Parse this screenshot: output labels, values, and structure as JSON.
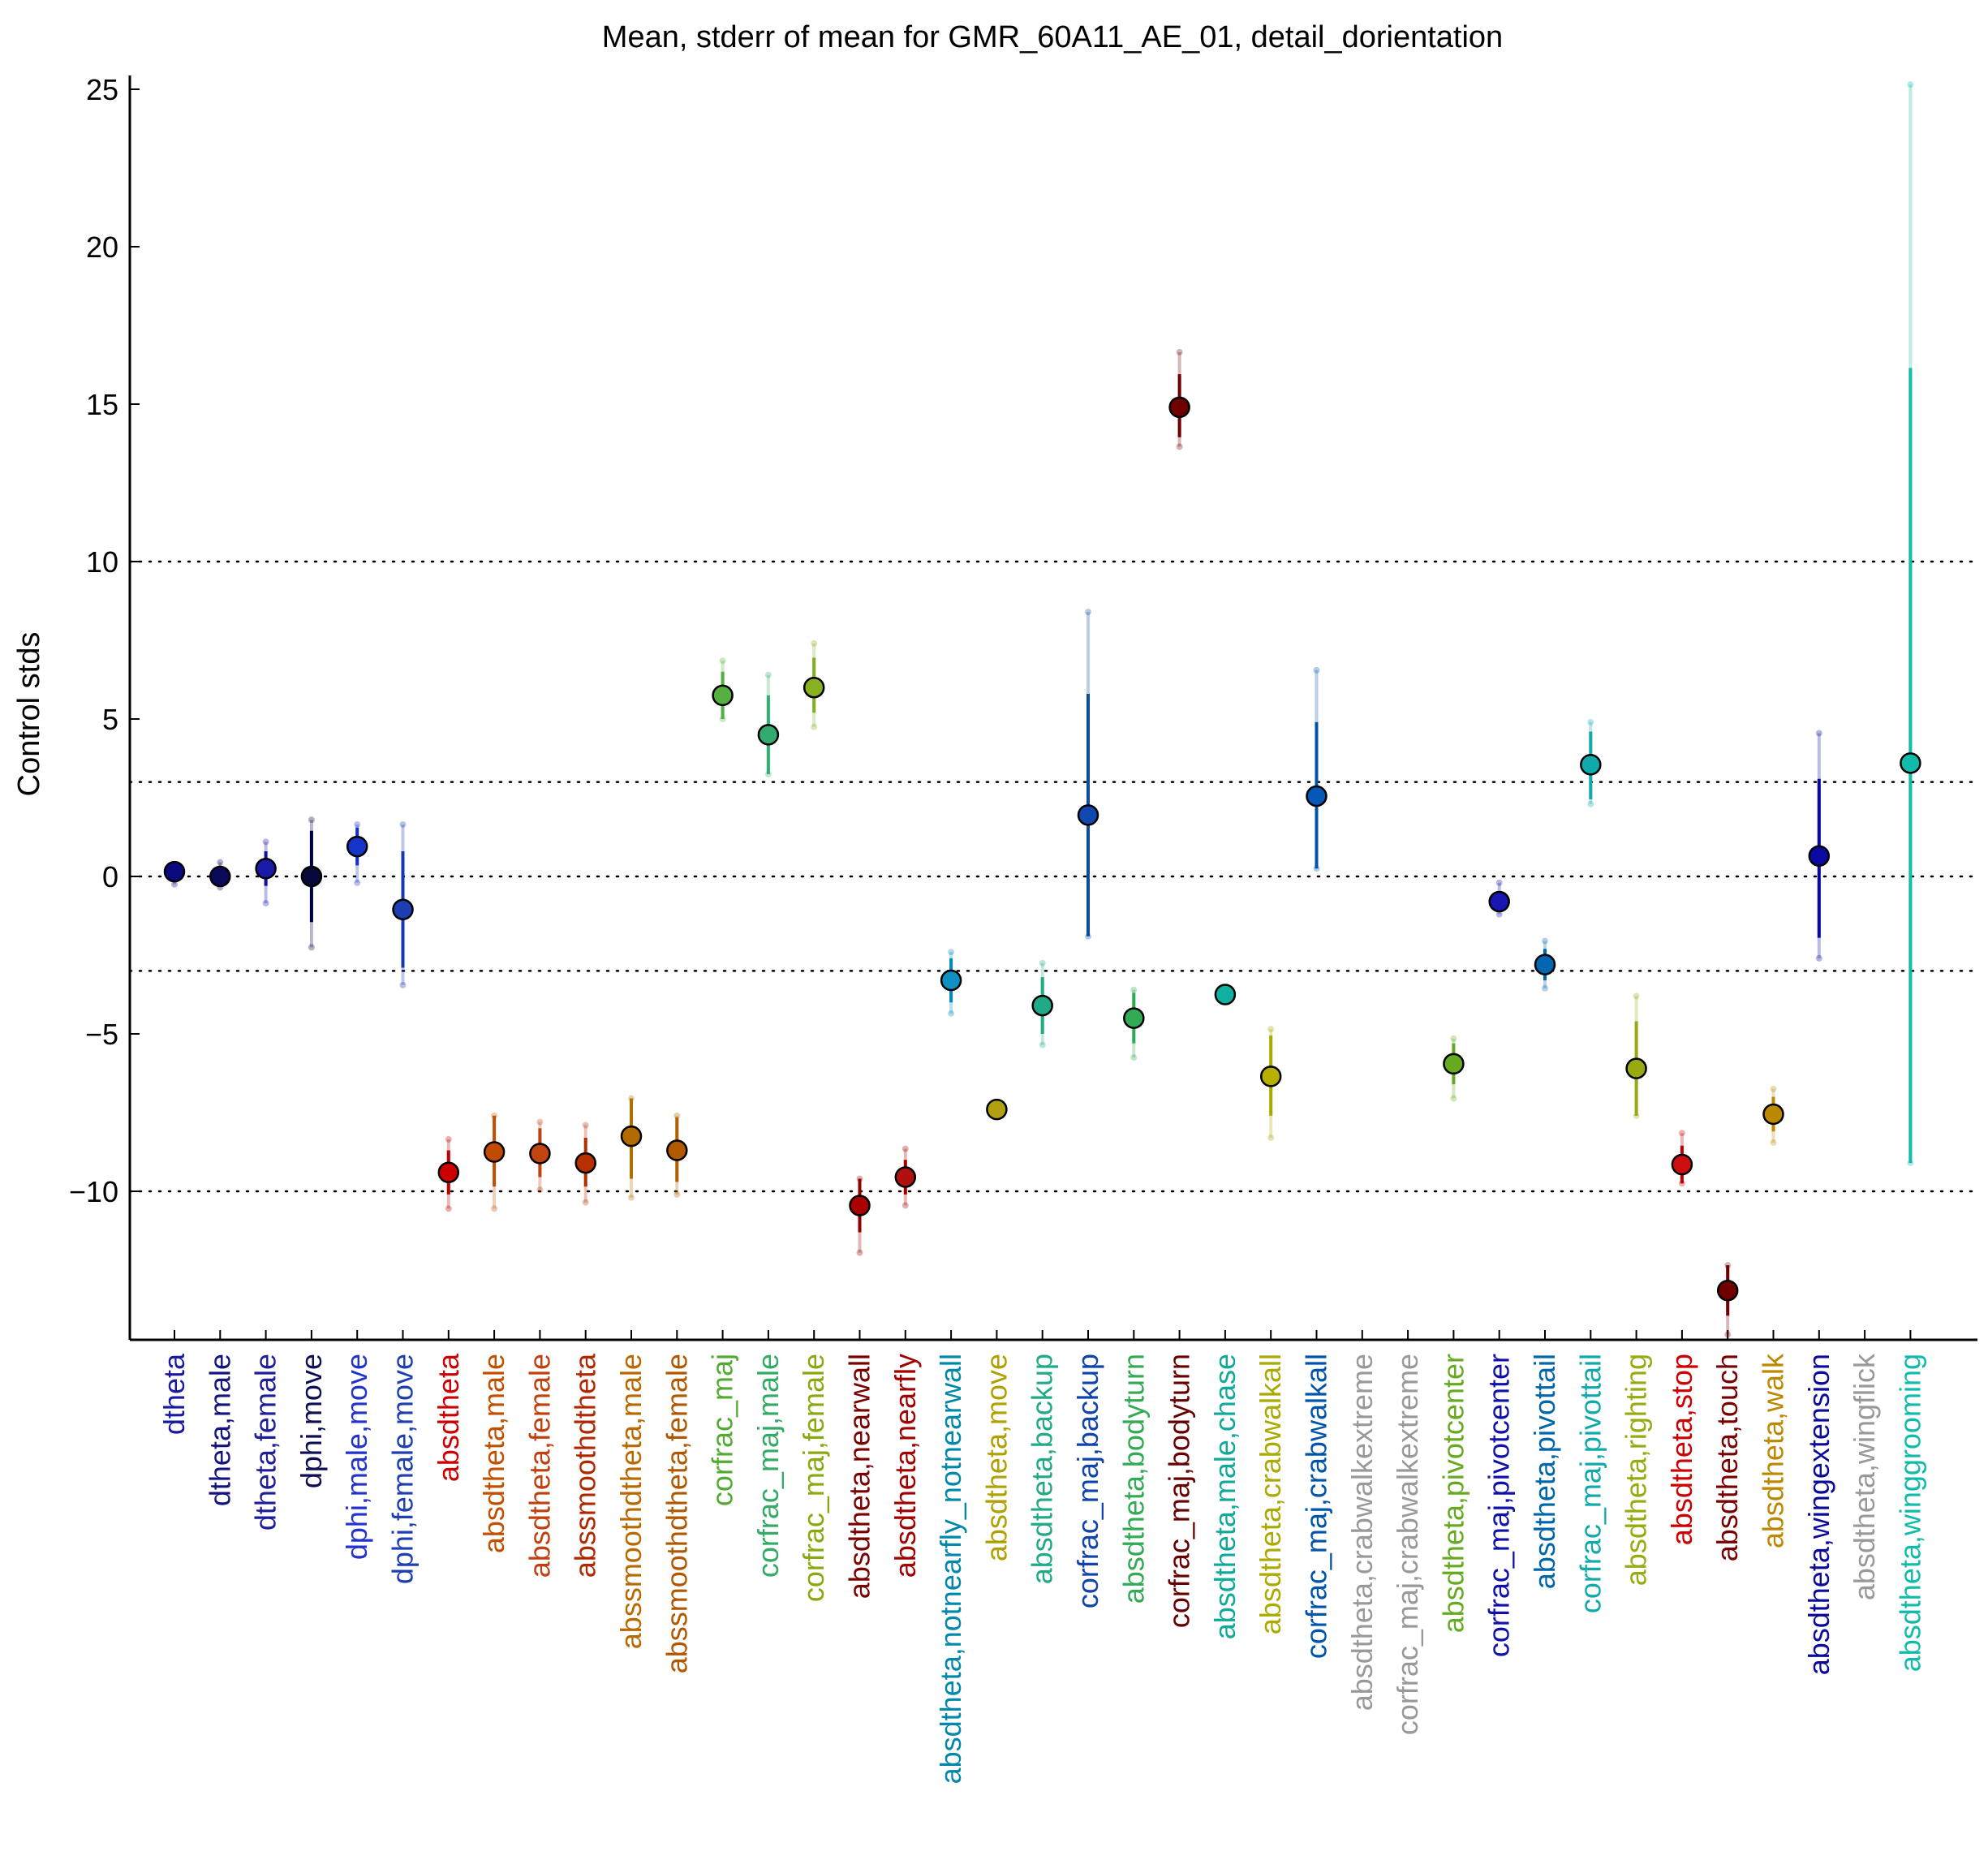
{
  "chart_data": {
    "type": "scatter",
    "title": "Mean, stderr of mean for GMR_60A11_AE_01, detail_dorientation",
    "xlabel": "",
    "ylabel": "Control stds",
    "ylim": [
      -14.8,
      25.6
    ],
    "yticks": [
      25,
      20,
      15,
      10,
      5,
      0,
      -5,
      -10
    ],
    "reference_lines": [
      10,
      3,
      0,
      -3,
      -10
    ],
    "grid": false,
    "legend": "none",
    "categories": [
      "dtheta",
      "dtheta,male",
      "dtheta,female",
      "dphi,move",
      "dphi,male,move",
      "dphi,female,move",
      "absdtheta",
      "absdtheta,male",
      "absdtheta,female",
      "abssmoothdtheta",
      "abssmoothdtheta,male",
      "abssmoothdtheta,female",
      "corfrac_maj",
      "corfrac_maj,male",
      "corfrac_maj,female",
      "absdtheta,nearwall",
      "absdtheta,nearfly",
      "absdtheta,notnearfly_notnearwall",
      "absdtheta,move",
      "absdtheta,backup",
      "corfrac_maj,backup",
      "absdtheta,bodyturn",
      "corfrac_maj,bodyturn",
      "absdtheta,male,chase",
      "absdtheta,crabwalkall",
      "corfrac_maj,crabwalkall",
      "absdtheta,crabwalkextreme",
      "corfrac_maj,crabwalkextreme",
      "absdtheta,pivotcenter",
      "corfrac_maj,pivotcenter",
      "absdtheta,pivottail",
      "corfrac_maj,pivottail",
      "absdtheta,righting",
      "absdtheta,stop",
      "absdtheta,touch",
      "absdtheta,walk",
      "absdtheta,wingextension",
      "absdtheta,wingflick",
      "absdtheta,winggrooming"
    ],
    "label_colors": [
      "#1a1aa0",
      "#14147e",
      "#1e1e9a",
      "#0e0e55",
      "#2233cc",
      "#1f3fb0",
      "#cc0000",
      "#c05000",
      "#c04010",
      "#b02800",
      "#b86a00",
      "#b05800",
      "#55aa33",
      "#33aa66",
      "#88aa11",
      "#7a0000",
      "#a00000",
      "#0088aa",
      "#b0a000",
      "#22aa88",
      "#1144aa",
      "#33aa55",
      "#660000",
      "#11aa99",
      "#aaaa00",
      "#0055aa",
      "#999999",
      "#999999",
      "#66aa22",
      "#1111aa",
      "#0066aa",
      "#11aaaa",
      "#99aa11",
      "#cc0000",
      "#770000",
      "#bb8800",
      "#0b0b99",
      "#999999",
      "#11bbaa"
    ],
    "mean": [
      0.15,
      0.0,
      0.25,
      0.0,
      0.95,
      -1.05,
      -9.4,
      -8.75,
      -8.8,
      -9.1,
      -8.25,
      -8.7,
      5.75,
      4.5,
      6.0,
      -10.45,
      -9.55,
      -3.3,
      -7.4,
      -4.1,
      1.95,
      -4.5,
      14.9,
      -3.75,
      -6.35,
      2.55,
      null,
      null,
      -5.95,
      -0.8,
      -2.8,
      3.55,
      -6.1,
      -9.15,
      -13.15,
      -7.55,
      0.65,
      null,
      3.6
    ],
    "sem_low": [
      0.0,
      -0.2,
      -0.3,
      -1.45,
      0.35,
      -2.9,
      -10.1,
      -9.85,
      -9.55,
      -9.85,
      -9.6,
      -9.7,
      5.0,
      3.25,
      5.2,
      -11.3,
      -10.1,
      -4.0,
      -7.4,
      -5.0,
      -1.9,
      -5.3,
      13.95,
      -3.75,
      -7.6,
      0.25,
      null,
      null,
      -6.6,
      -1.1,
      -3.3,
      2.45,
      -7.6,
      -9.75,
      -13.95,
      -8.1,
      -1.95,
      null,
      -9.1
    ],
    "sem_high": [
      0.3,
      0.2,
      0.8,
      1.45,
      1.55,
      0.8,
      -8.7,
      -7.6,
      -8.0,
      -8.3,
      -7.05,
      -7.65,
      6.5,
      5.75,
      6.95,
      -9.6,
      -9.0,
      -2.6,
      -7.4,
      -3.2,
      5.8,
      -3.7,
      15.95,
      -3.75,
      -5.05,
      4.9,
      null,
      null,
      -5.3,
      -0.5,
      -2.3,
      4.6,
      -4.6,
      -8.55,
      -12.35,
      -7.0,
      3.1,
      null,
      16.15
    ],
    "ci_low": [
      -0.25,
      -0.35,
      -0.85,
      -2.25,
      -0.2,
      -3.45,
      -10.55,
      -10.55,
      -9.95,
      -10.35,
      -10.2,
      -10.1,
      5.0,
      3.25,
      4.75,
      -11.95,
      -10.45,
      -4.35,
      -7.4,
      -5.35,
      -1.9,
      -5.75,
      13.65,
      -3.75,
      -8.3,
      0.25,
      null,
      null,
      -7.05,
      -1.2,
      -3.55,
      2.3,
      -7.6,
      -9.75,
      -14.55,
      -8.45,
      -2.6,
      null,
      -9.1
    ],
    "ci_high": [
      0.35,
      0.45,
      1.1,
      1.8,
      1.65,
      1.65,
      -8.35,
      -7.6,
      -7.8,
      -7.9,
      -7.05,
      -7.6,
      6.85,
      6.4,
      7.4,
      -9.6,
      -8.65,
      -2.4,
      -7.4,
      -2.75,
      8.4,
      -3.6,
      16.65,
      -3.75,
      -4.85,
      6.55,
      null,
      null,
      -5.15,
      -0.2,
      -2.05,
      4.9,
      -3.8,
      -8.15,
      -12.35,
      -6.75,
      4.55,
      null,
      25.15
    ],
    "fill_colors": [
      "#0a0a80",
      "#0a0a5a",
      "#1a1aa8",
      "#08083a",
      "#1535c8",
      "#1d3eb0",
      "#cc0000",
      "#c04a00",
      "#c04510",
      "#b83000",
      "#b06a00",
      "#b05a00",
      "#55b040",
      "#33aa70",
      "#88b020",
      "#aa0000",
      "#b01010",
      "#1090c0",
      "#b0a010",
      "#20aa88",
      "#1048b0",
      "#33aa55",
      "#700000",
      "#10b0a0",
      "#b8b000",
      "#0558b8",
      "#999999",
      "#999999",
      "#66aa22",
      "#1818b0",
      "#0066b0",
      "#11aaaa",
      "#99aa11",
      "#cc1010",
      "#700000",
      "#bb8800",
      "#0a0aa0",
      "#999999",
      "#11bbaa"
    ],
    "line_colors": [
      "#000080",
      "#000060",
      "#1010a0",
      "#000040",
      "#1530c0",
      "#1838b0",
      "#c00000",
      "#c05000",
      "#c04010",
      "#b03000",
      "#b07000",
      "#b06000",
      "#50b040",
      "#30b070",
      "#80b020",
      "#900000",
      "#a00000",
      "#0088bb",
      "#b0a000",
      "#20aa88",
      "#0a4aaa",
      "#30aa50",
      "#700000",
      "#10aaaa",
      "#aaaa00",
      "#0055aa",
      "#999999",
      "#999999",
      "#66aa22",
      "#1010a0",
      "#0066aa",
      "#10aaaa",
      "#99aa11",
      "#c00000",
      "#700000",
      "#bb8800",
      "#0a0a99",
      "#999999",
      "#10bbaa"
    ]
  }
}
